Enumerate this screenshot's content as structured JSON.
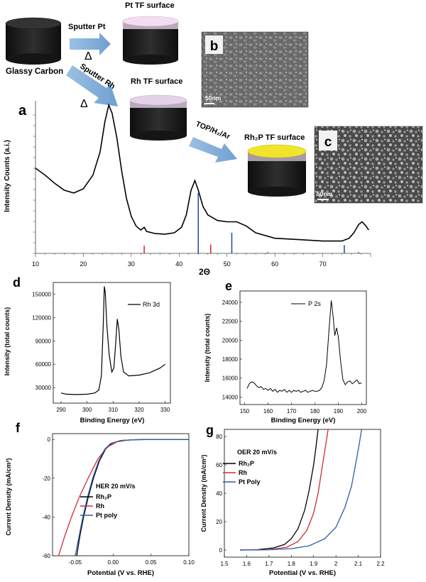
{
  "schematic": {
    "glassy_carbon_label": "Glassy Carbon",
    "sputter_pt_label": "Sputter Pt",
    "sputter_rh_label": "Sputter Rh",
    "delta_symbol": "Δ",
    "pt_surface_label": "Pt TF surface",
    "rh_surface_label": "Rh TF surface",
    "top_process_label": "TOP/H₂/Ar",
    "rh2p_surface_label": "Rh₂P TF surface",
    "colors": {
      "carbon": "#1c1c1c",
      "pt_top": "#f6dcf2",
      "rh_top": "#e4d2e8",
      "rh2p_top": "#f0e52c",
      "arrow": "#88b3dd"
    }
  },
  "sem_b": {
    "panel_label": "b",
    "scale_label": "50nm"
  },
  "sem_c": {
    "panel_label": "c",
    "scale_label": "50nm"
  },
  "panel_labels": {
    "a": "a",
    "d": "d",
    "e": "e",
    "f": "f",
    "g": "g"
  },
  "chart_data": [
    {
      "id": "a",
      "type": "line",
      "title": "",
      "xlabel": "2Θ",
      "ylabel": "Intensity Counts  (a.i.)",
      "xlim": [
        10,
        80
      ],
      "xticks": [
        10,
        20,
        30,
        40,
        50,
        60,
        70
      ],
      "series": [
        {
          "values_xy": [
            [
              10,
              3.1
            ],
            [
              12,
              2.85
            ],
            [
              14,
              2.55
            ],
            [
              16,
              2.3
            ],
            [
              18,
              2.2
            ],
            [
              20,
              2.35
            ],
            [
              22,
              2.85
            ],
            [
              23.5,
              3.7
            ],
            [
              24.5,
              4.8
            ],
            [
              25.3,
              5.4
            ],
            [
              26,
              5.1
            ],
            [
              27,
              4.2
            ],
            [
              28,
              3.0
            ],
            [
              29,
              2.0
            ],
            [
              30,
              1.35
            ],
            [
              31,
              1.0
            ],
            [
              32,
              0.85
            ],
            [
              32.7,
              0.95
            ],
            [
              33.2,
              0.8
            ],
            [
              35,
              0.72
            ],
            [
              37,
              0.7
            ],
            [
              39,
              0.75
            ],
            [
              40.5,
              0.95
            ],
            [
              41.5,
              1.4
            ],
            [
              42.5,
              2.3
            ],
            [
              43.3,
              2.65
            ],
            [
              44,
              2.3
            ],
            [
              45,
              1.7
            ],
            [
              46,
              1.4
            ],
            [
              48,
              1.2
            ],
            [
              50,
              1.15
            ],
            [
              52,
              1.15
            ],
            [
              54,
              1.0
            ],
            [
              56,
              0.75
            ],
            [
              60,
              0.55
            ],
            [
              65,
              0.5
            ],
            [
              70,
              0.45
            ],
            [
              74,
              0.45
            ],
            [
              75.5,
              0.55
            ],
            [
              76.5,
              0.75
            ],
            [
              77.5,
              1.05
            ],
            [
              78.2,
              1.15
            ],
            [
              79,
              1.0
            ],
            [
              79.6,
              0.85
            ]
          ]
        }
      ],
      "reference_lines_blue": [
        {
          "x": 44.0,
          "h": 2.2
        },
        {
          "x": 51.0,
          "h": 0.75
        },
        {
          "x": 74.5,
          "h": 0.3
        }
      ],
      "reference_lines_red": [
        {
          "x": 32.7,
          "h": 0.28
        },
        {
          "x": 46.6,
          "h": 0.32
        },
        {
          "x": 58.5,
          "h": 0.05
        },
        {
          "x": 77.5,
          "h": 0.05
        }
      ]
    },
    {
      "id": "d",
      "type": "line",
      "title": "",
      "xlabel": "Binding Energy (eV)",
      "ylabel": "Intensity (total counts)",
      "xlim": [
        287,
        332
      ],
      "ylim": [
        10000,
        165000
      ],
      "xticks": [
        290,
        300,
        310,
        320,
        330
      ],
      "yticks": [
        30000,
        60000,
        90000,
        120000,
        150000
      ],
      "series": [
        {
          "name": "Rh 3d",
          "values_xy": [
            [
              290,
              23000
            ],
            [
              292,
              21500
            ],
            [
              296,
              21000
            ],
            [
              300,
              21500
            ],
            [
              303,
              23000
            ],
            [
              304.5,
              27000
            ],
            [
              305.5,
              45000
            ],
            [
              306.2,
              110000
            ],
            [
              306.6,
              160000
            ],
            [
              307,
              152000
            ],
            [
              307.6,
              110000
            ],
            [
              308.5,
              72000
            ],
            [
              309.5,
              50000
            ],
            [
              310.3,
              55000
            ],
            [
              311,
              88000
            ],
            [
              311.6,
              118000
            ],
            [
              312.2,
              105000
            ],
            [
              313,
              70000
            ],
            [
              314,
              50000
            ],
            [
              316,
              45000
            ],
            [
              320,
              46000
            ],
            [
              324,
              49000
            ],
            [
              328,
              55000
            ],
            [
              330,
              60000
            ]
          ]
        }
      ]
    },
    {
      "id": "e",
      "type": "line",
      "title": "",
      "xlabel": "Binding Energy (eV)",
      "ylabel": "Intensity (total counts)",
      "xlim": [
        148,
        202
      ],
      "ylim": [
        13200,
        25200
      ],
      "xticks": [
        150,
        160,
        170,
        180,
        190,
        200
      ],
      "yticks": [
        14000,
        16000,
        18000,
        20000,
        22000,
        24000
      ],
      "series": [
        {
          "name": "P 2s",
          "values_xy": [
            [
              151,
              14900
            ],
            [
              152,
              15400
            ],
            [
              153,
              15600
            ],
            [
              154,
              15500
            ],
            [
              155,
              15200
            ],
            [
              156,
              15000
            ],
            [
              157,
              15100
            ],
            [
              158,
              14800
            ],
            [
              159,
              14900
            ],
            [
              160,
              14700
            ],
            [
              161,
              14900
            ],
            [
              162,
              14600
            ],
            [
              163,
              14800
            ],
            [
              164,
              14500
            ],
            [
              165,
              14700
            ],
            [
              166,
              14600
            ],
            [
              167,
              14800
            ],
            [
              168,
              14500
            ],
            [
              169,
              14700
            ],
            [
              170,
              14500
            ],
            [
              171,
              14700
            ],
            [
              172,
              14600
            ],
            [
              173,
              14700
            ],
            [
              174,
              14500
            ],
            [
              175,
              14600
            ],
            [
              176,
              14700
            ],
            [
              177,
              14500
            ],
            [
              178,
              14600
            ],
            [
              179,
              14700
            ],
            [
              180,
              14600
            ],
            [
              181,
              14600
            ],
            [
              182,
              14700
            ],
            [
              183,
              15000
            ],
            [
              184,
              15800
            ],
            [
              185,
              17500
            ],
            [
              186,
              21000
            ],
            [
              187,
              24200
            ],
            [
              187.8,
              22500
            ],
            [
              188.5,
              20500
            ],
            [
              189.3,
              21300
            ],
            [
              190,
              20400
            ],
            [
              191,
              17800
            ],
            [
              192,
              15800
            ],
            [
              193,
              15300
            ],
            [
              194,
              15600
            ],
            [
              195,
              15700
            ],
            [
              196,
              15400
            ],
            [
              197,
              15600
            ],
            [
              198,
              15800
            ],
            [
              199,
              15400
            ],
            [
              200,
              15500
            ]
          ]
        }
      ]
    },
    {
      "id": "f",
      "type": "line",
      "title": "",
      "xlabel": "Potential (V vs. RHE)",
      "ylabel": "Current Density (mA/cm²)",
      "xlim": [
        -0.08,
        0.1
      ],
      "ylim": [
        -60,
        3
      ],
      "xticks": [
        -0.05,
        0.0,
        0.05,
        0.1
      ],
      "xtick_labels": [
        "-0.05",
        "0.00",
        "0.05",
        "0.10"
      ],
      "yticks": [
        0,
        -20,
        -40,
        -60
      ],
      "legend_title": "HER 20 mV/s",
      "series": [
        {
          "name": "Rh₂P",
          "color": "#000000",
          "values_xy": [
            [
              -0.048,
              -60
            ],
            [
              -0.044,
              -50
            ],
            [
              -0.039,
              -40
            ],
            [
              -0.033,
              -30
            ],
            [
              -0.026,
              -20
            ],
            [
              -0.018,
              -11
            ],
            [
              -0.01,
              -5
            ],
            [
              -0.002,
              -2
            ],
            [
              0.01,
              -0.5
            ],
            [
              0.03,
              -0.1
            ],
            [
              0.06,
              0
            ],
            [
              0.1,
              0
            ]
          ]
        },
        {
          "name": "Rh",
          "color": "#d42a3a",
          "values_xy": [
            [
              -0.072,
              -60
            ],
            [
              -0.064,
              -50
            ],
            [
              -0.055,
              -40
            ],
            [
              -0.045,
              -30
            ],
            [
              -0.033,
              -20
            ],
            [
              -0.02,
              -10
            ],
            [
              -0.008,
              -4
            ],
            [
              0.005,
              -1.2
            ],
            [
              0.02,
              -0.3
            ],
            [
              0.04,
              0
            ],
            [
              0.1,
              0
            ]
          ]
        },
        {
          "name": "Pt poly",
          "color": "#2a5fa5",
          "values_xy": [
            [
              -0.05,
              -60
            ],
            [
              -0.045,
              -50
            ],
            [
              -0.04,
              -40
            ],
            [
              -0.034,
              -30
            ],
            [
              -0.027,
              -20
            ],
            [
              -0.019,
              -11
            ],
            [
              -0.011,
              -5
            ],
            [
              -0.003,
              -2
            ],
            [
              0.01,
              -0.5
            ],
            [
              0.03,
              -0.1
            ],
            [
              0.06,
              0
            ],
            [
              0.1,
              0
            ]
          ]
        }
      ]
    },
    {
      "id": "g",
      "type": "line",
      "title": "",
      "xlabel": "Potential (V vs. RHE)",
      "ylabel": "Current Density (mA/cm²)",
      "xlim": [
        1.5,
        2.2
      ],
      "ylim": [
        -5,
        85
      ],
      "xticks": [
        1.5,
        1.6,
        1.7,
        1.8,
        1.9,
        2.0,
        2.1,
        2.2
      ],
      "yticks": [
        0,
        20,
        40,
        60,
        80
      ],
      "legend_title": "OER 20 mV/s",
      "series": [
        {
          "name": "Rh₂P",
          "color": "#000000",
          "values_xy": [
            [
              1.57,
              0
            ],
            [
              1.65,
              0.3
            ],
            [
              1.72,
              1.5
            ],
            [
              1.77,
              4
            ],
            [
              1.8,
              8
            ],
            [
              1.83,
              15
            ],
            [
              1.86,
              28
            ],
            [
              1.88,
              42
            ],
            [
              1.9,
              60
            ],
            [
              1.91,
              72
            ],
            [
              1.92,
              85
            ]
          ]
        },
        {
          "name": "Rh",
          "color": "#d42a3a",
          "values_xy": [
            [
              1.57,
              0
            ],
            [
              1.7,
              0.3
            ],
            [
              1.78,
              2
            ],
            [
              1.83,
              6
            ],
            [
              1.87,
              14
            ],
            [
              1.9,
              26
            ],
            [
              1.92,
              40
            ],
            [
              1.94,
              60
            ],
            [
              1.955,
              75
            ],
            [
              1.965,
              85
            ]
          ]
        },
        {
          "name": "Pt Poly",
          "color": "#2a5fa5",
          "values_xy": [
            [
              1.57,
              0
            ],
            [
              1.7,
              0.2
            ],
            [
              1.8,
              1
            ],
            [
              1.88,
              3
            ],
            [
              1.95,
              8
            ],
            [
              2.0,
              16
            ],
            [
              2.04,
              30
            ],
            [
              2.07,
              45
            ],
            [
              2.09,
              62
            ],
            [
              2.105,
              75
            ],
            [
              2.115,
              85
            ]
          ]
        }
      ]
    }
  ]
}
